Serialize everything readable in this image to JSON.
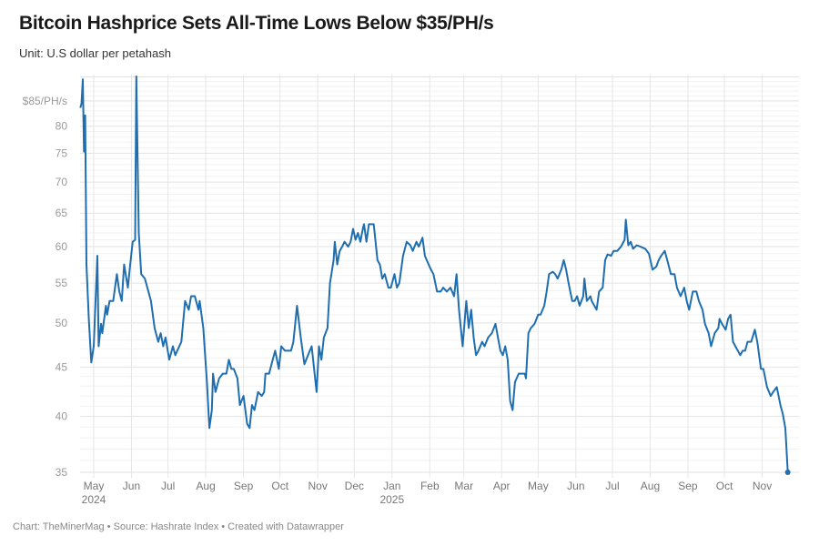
{
  "header": {
    "title": "Bitcoin Hashprice Sets All-Time Lows Below $35/PH/s",
    "subtitle": "Unit: U.S dollar per petahash"
  },
  "footer": {
    "credit": "Chart: TheMinerMag • Source: Hashrate Index • Created with Datawrapper"
  },
  "colors": {
    "line": "#1f6eb0",
    "grid": "#e8e8e8"
  },
  "chart_data": {
    "type": "line",
    "title": "Bitcoin Hashprice Sets All-Time Lows Below $35/PH/s",
    "ylabel": "",
    "xlabel": "",
    "yscale": "log",
    "ylim": [
      35,
      90.5
    ],
    "xlim": [
      "2024-04-19",
      "2025-11-30"
    ],
    "grid": true,
    "legend": "none",
    "y_ticks": [
      {
        "value": 85,
        "label": "$85/PH/s"
      },
      {
        "value": 80,
        "label": "80"
      },
      {
        "value": 75,
        "label": "75"
      },
      {
        "value": 70,
        "label": "70"
      },
      {
        "value": 65,
        "label": "65"
      },
      {
        "value": 60,
        "label": "60"
      },
      {
        "value": 55,
        "label": "55"
      },
      {
        "value": 50,
        "label": "50"
      },
      {
        "value": 45,
        "label": "45"
      },
      {
        "value": 40,
        "label": "40"
      },
      {
        "value": 35,
        "label": "35"
      }
    ],
    "x_ticks": [
      {
        "date": "2024-05-01",
        "label": "May",
        "year": "2024"
      },
      {
        "date": "2024-06-01",
        "label": "Jun"
      },
      {
        "date": "2024-07-01",
        "label": "Jul"
      },
      {
        "date": "2024-08-01",
        "label": "Aug"
      },
      {
        "date": "2024-09-01",
        "label": "Sep"
      },
      {
        "date": "2024-10-01",
        "label": "Oct"
      },
      {
        "date": "2024-11-01",
        "label": "Nov"
      },
      {
        "date": "2024-12-01",
        "label": "Dec"
      },
      {
        "date": "2025-01-01",
        "label": "Jan",
        "year": "2025"
      },
      {
        "date": "2025-02-01",
        "label": "Feb"
      },
      {
        "date": "2025-03-01",
        "label": "Mar"
      },
      {
        "date": "2025-04-01",
        "label": "Apr"
      },
      {
        "date": "2025-05-01",
        "label": "May"
      },
      {
        "date": "2025-06-01",
        "label": "Jun"
      },
      {
        "date": "2025-07-01",
        "label": "Jul"
      },
      {
        "date": "2025-08-01",
        "label": "Aug"
      },
      {
        "date": "2025-09-01",
        "label": "Sep"
      },
      {
        "date": "2025-10-01",
        "label": "Oct"
      },
      {
        "date": "2025-11-01",
        "label": "Nov"
      }
    ],
    "series": [
      {
        "points": [
          [
            "2024-04-20",
            83.6
          ],
          [
            "2024-04-21",
            84.5
          ],
          [
            "2024-04-22",
            89.5
          ],
          [
            "2024-04-23",
            75.3
          ],
          [
            "2024-04-24",
            82.1
          ],
          [
            "2024-04-25",
            57.5
          ],
          [
            "2024-04-27",
            50.5
          ],
          [
            "2024-04-29",
            45.5
          ],
          [
            "2024-05-01",
            47.3
          ],
          [
            "2024-05-04",
            58.7
          ],
          [
            "2024-05-05",
            47.3
          ],
          [
            "2024-05-07",
            49.9
          ],
          [
            "2024-05-08",
            48.8
          ],
          [
            "2024-05-11",
            52.1
          ],
          [
            "2024-05-12",
            51.0
          ],
          [
            "2024-05-14",
            52.7
          ],
          [
            "2024-05-17",
            52.7
          ],
          [
            "2024-05-20",
            56.2
          ],
          [
            "2024-05-22",
            53.9
          ],
          [
            "2024-05-24",
            52.7
          ],
          [
            "2024-05-26",
            57.5
          ],
          [
            "2024-05-29",
            54.4
          ],
          [
            "2024-05-31",
            57.5
          ],
          [
            "2024-06-02",
            60.7
          ],
          [
            "2024-06-04",
            61.0
          ],
          [
            "2024-06-05",
            90.1
          ],
          [
            "2024-06-07",
            62.0
          ],
          [
            "2024-06-09",
            56.2
          ],
          [
            "2024-06-12",
            55.6
          ],
          [
            "2024-06-17",
            52.7
          ],
          [
            "2024-06-20",
            49.4
          ],
          [
            "2024-06-23",
            47.8
          ],
          [
            "2024-06-25",
            48.8
          ],
          [
            "2024-06-27",
            47.3
          ],
          [
            "2024-06-29",
            48.3
          ],
          [
            "2024-07-02",
            45.8
          ],
          [
            "2024-07-05",
            47.3
          ],
          [
            "2024-07-07",
            46.3
          ],
          [
            "2024-07-12",
            47.8
          ],
          [
            "2024-07-15",
            52.7
          ],
          [
            "2024-07-18",
            51.6
          ],
          [
            "2024-07-20",
            53.3
          ],
          [
            "2024-07-23",
            53.3
          ],
          [
            "2024-07-26",
            51.6
          ],
          [
            "2024-07-27",
            52.7
          ],
          [
            "2024-07-30",
            49.4
          ],
          [
            "2024-08-02",
            43.4
          ],
          [
            "2024-08-04",
            38.9
          ],
          [
            "2024-08-06",
            40.6
          ],
          [
            "2024-08-07",
            44.3
          ],
          [
            "2024-08-09",
            42.4
          ],
          [
            "2024-08-12",
            43.8
          ],
          [
            "2024-08-15",
            44.3
          ],
          [
            "2024-08-18",
            44.3
          ],
          [
            "2024-08-20",
            45.8
          ],
          [
            "2024-08-22",
            44.8
          ],
          [
            "2024-08-24",
            44.8
          ],
          [
            "2024-08-27",
            43.8
          ],
          [
            "2024-08-29",
            41.1
          ],
          [
            "2024-09-01",
            42.0
          ],
          [
            "2024-09-04",
            39.3
          ],
          [
            "2024-09-06",
            38.9
          ],
          [
            "2024-09-08",
            41.1
          ],
          [
            "2024-09-10",
            40.6
          ],
          [
            "2024-09-13",
            42.4
          ],
          [
            "2024-09-16",
            42.0
          ],
          [
            "2024-09-18",
            42.4
          ],
          [
            "2024-09-19",
            44.3
          ],
          [
            "2024-09-22",
            44.3
          ],
          [
            "2024-09-25",
            45.8
          ],
          [
            "2024-09-27",
            46.8
          ],
          [
            "2024-09-30",
            44.8
          ],
          [
            "2024-10-02",
            47.3
          ],
          [
            "2024-10-05",
            46.8
          ],
          [
            "2024-10-10",
            46.8
          ],
          [
            "2024-10-12",
            47.8
          ],
          [
            "2024-10-15",
            52.1
          ],
          [
            "2024-10-18",
            48.3
          ],
          [
            "2024-10-21",
            45.3
          ],
          [
            "2024-10-24",
            46.3
          ],
          [
            "2024-10-27",
            47.3
          ],
          [
            "2024-10-31",
            42.4
          ],
          [
            "2024-11-02",
            47.3
          ],
          [
            "2024-11-04",
            45.8
          ],
          [
            "2024-11-06",
            48.3
          ],
          [
            "2024-11-09",
            49.4
          ],
          [
            "2024-11-11",
            55.0
          ],
          [
            "2024-11-14",
            58.1
          ],
          [
            "2024-11-15",
            60.7
          ],
          [
            "2024-11-17",
            57.5
          ],
          [
            "2024-11-19",
            59.4
          ],
          [
            "2024-11-21",
            60.0
          ],
          [
            "2024-11-23",
            60.7
          ],
          [
            "2024-11-26",
            60.0
          ],
          [
            "2024-11-28",
            60.7
          ],
          [
            "2024-11-30",
            62.6
          ],
          [
            "2024-12-02",
            61.0
          ],
          [
            "2024-12-04",
            62.0
          ],
          [
            "2024-12-06",
            60.7
          ],
          [
            "2024-12-08",
            62.6
          ],
          [
            "2024-12-09",
            63.3
          ],
          [
            "2024-12-11",
            60.7
          ],
          [
            "2024-12-13",
            63.3
          ],
          [
            "2024-12-15",
            63.3
          ],
          [
            "2024-12-17",
            63.3
          ],
          [
            "2024-12-20",
            58.1
          ],
          [
            "2024-12-22",
            57.5
          ],
          [
            "2024-12-24",
            55.6
          ],
          [
            "2024-12-26",
            56.2
          ],
          [
            "2024-12-29",
            54.4
          ],
          [
            "2024-12-31",
            54.4
          ],
          [
            "2025-01-03",
            56.2
          ],
          [
            "2025-01-05",
            54.4
          ],
          [
            "2025-01-07",
            55.0
          ],
          [
            "2025-01-10",
            58.7
          ],
          [
            "2025-01-13",
            60.7
          ],
          [
            "2025-01-16",
            60.2
          ],
          [
            "2025-01-18",
            59.4
          ],
          [
            "2025-01-21",
            60.7
          ],
          [
            "2025-01-23",
            60.0
          ],
          [
            "2025-01-26",
            61.3
          ],
          [
            "2025-01-28",
            58.7
          ],
          [
            "2025-01-31",
            57.5
          ],
          [
            "2025-02-02",
            56.8
          ],
          [
            "2025-02-04",
            56.2
          ],
          [
            "2025-02-07",
            53.9
          ],
          [
            "2025-02-10",
            53.9
          ],
          [
            "2025-02-12",
            54.4
          ],
          [
            "2025-02-15",
            53.9
          ],
          [
            "2025-02-18",
            54.4
          ],
          [
            "2025-02-21",
            53.3
          ],
          [
            "2025-02-23",
            56.2
          ],
          [
            "2025-02-25",
            51.6
          ],
          [
            "2025-02-28",
            47.3
          ],
          [
            "2025-03-03",
            52.7
          ],
          [
            "2025-03-05",
            49.4
          ],
          [
            "2025-03-07",
            51.6
          ],
          [
            "2025-03-09",
            48.3
          ],
          [
            "2025-03-11",
            46.3
          ],
          [
            "2025-03-13",
            46.8
          ],
          [
            "2025-03-16",
            47.8
          ],
          [
            "2025-03-18",
            47.3
          ],
          [
            "2025-03-21",
            48.3
          ],
          [
            "2025-03-24",
            48.8
          ],
          [
            "2025-03-27",
            49.9
          ],
          [
            "2025-03-29",
            48.3
          ],
          [
            "2025-03-31",
            46.8
          ],
          [
            "2025-04-02",
            46.3
          ],
          [
            "2025-04-04",
            47.3
          ],
          [
            "2025-04-06",
            45.8
          ],
          [
            "2025-04-08",
            41.5
          ],
          [
            "2025-04-10",
            40.6
          ],
          [
            "2025-04-12",
            43.4
          ],
          [
            "2025-04-15",
            44.3
          ],
          [
            "2025-04-17",
            44.3
          ],
          [
            "2025-04-20",
            44.3
          ],
          [
            "2025-04-21",
            43.8
          ],
          [
            "2025-04-23",
            48.8
          ],
          [
            "2025-04-25",
            49.4
          ],
          [
            "2025-04-28",
            49.9
          ],
          [
            "2025-05-01",
            51.0
          ],
          [
            "2025-05-03",
            51.0
          ],
          [
            "2025-05-06",
            52.1
          ],
          [
            "2025-05-08",
            53.9
          ],
          [
            "2025-05-10",
            56.2
          ],
          [
            "2025-05-13",
            56.5
          ],
          [
            "2025-05-15",
            56.2
          ],
          [
            "2025-05-17",
            55.6
          ],
          [
            "2025-05-20",
            56.8
          ],
          [
            "2025-05-22",
            58.1
          ],
          [
            "2025-05-24",
            56.8
          ],
          [
            "2025-05-26",
            55.0
          ],
          [
            "2025-05-29",
            52.7
          ],
          [
            "2025-05-31",
            52.7
          ],
          [
            "2025-06-02",
            53.3
          ],
          [
            "2025-06-04",
            52.1
          ],
          [
            "2025-06-07",
            53.3
          ],
          [
            "2025-06-08",
            55.6
          ],
          [
            "2025-06-10",
            52.7
          ],
          [
            "2025-06-13",
            53.3
          ],
          [
            "2025-06-14",
            52.7
          ],
          [
            "2025-06-18",
            51.6
          ],
          [
            "2025-06-20",
            53.9
          ],
          [
            "2025-06-23",
            54.4
          ],
          [
            "2025-06-25",
            58.1
          ],
          [
            "2025-06-27",
            58.9
          ],
          [
            "2025-06-30",
            58.7
          ],
          [
            "2025-07-02",
            59.4
          ],
          [
            "2025-07-05",
            59.4
          ],
          [
            "2025-07-08",
            60.0
          ],
          [
            "2025-07-11",
            61.0
          ],
          [
            "2025-07-12",
            64.0
          ],
          [
            "2025-07-14",
            60.2
          ],
          [
            "2025-07-16",
            60.7
          ],
          [
            "2025-07-18",
            59.7
          ],
          [
            "2025-07-21",
            60.2
          ],
          [
            "2025-07-24",
            60.0
          ],
          [
            "2025-07-28",
            59.7
          ],
          [
            "2025-07-31",
            59.0
          ],
          [
            "2025-08-03",
            56.8
          ],
          [
            "2025-08-06",
            57.2
          ],
          [
            "2025-08-08",
            58.1
          ],
          [
            "2025-08-10",
            58.7
          ],
          [
            "2025-08-13",
            59.4
          ],
          [
            "2025-08-16",
            57.5
          ],
          [
            "2025-08-18",
            56.2
          ],
          [
            "2025-08-21",
            56.2
          ],
          [
            "2025-08-23",
            54.4
          ],
          [
            "2025-08-26",
            53.3
          ],
          [
            "2025-08-29",
            54.4
          ],
          [
            "2025-08-31",
            52.7
          ],
          [
            "2025-09-02",
            51.6
          ],
          [
            "2025-09-05",
            53.9
          ],
          [
            "2025-09-08",
            53.9
          ],
          [
            "2025-09-10",
            52.7
          ],
          [
            "2025-09-13",
            51.6
          ],
          [
            "2025-09-15",
            49.9
          ],
          [
            "2025-09-18",
            48.8
          ],
          [
            "2025-09-20",
            47.3
          ],
          [
            "2025-09-23",
            48.8
          ],
          [
            "2025-09-26",
            49.4
          ],
          [
            "2025-09-27",
            50.5
          ],
          [
            "2025-09-29",
            49.9
          ],
          [
            "2025-10-02",
            49.2
          ],
          [
            "2025-10-04",
            50.5
          ],
          [
            "2025-10-06",
            51.0
          ],
          [
            "2025-10-08",
            47.8
          ],
          [
            "2025-10-10",
            47.3
          ],
          [
            "2025-10-12",
            46.8
          ],
          [
            "2025-10-14",
            46.3
          ],
          [
            "2025-10-16",
            46.8
          ],
          [
            "2025-10-18",
            46.8
          ],
          [
            "2025-10-20",
            47.8
          ],
          [
            "2025-10-23",
            47.8
          ],
          [
            "2025-10-26",
            49.2
          ],
          [
            "2025-10-28",
            47.8
          ],
          [
            "2025-10-31",
            44.8
          ],
          [
            "2025-11-02",
            44.8
          ],
          [
            "2025-11-05",
            42.9
          ],
          [
            "2025-11-08",
            42.0
          ],
          [
            "2025-11-10",
            42.4
          ],
          [
            "2025-11-13",
            42.9
          ],
          [
            "2025-11-16",
            41.1
          ],
          [
            "2025-11-18",
            40.2
          ],
          [
            "2025-11-20",
            38.9
          ],
          [
            "2025-11-22",
            35.0
          ]
        ]
      }
    ]
  }
}
